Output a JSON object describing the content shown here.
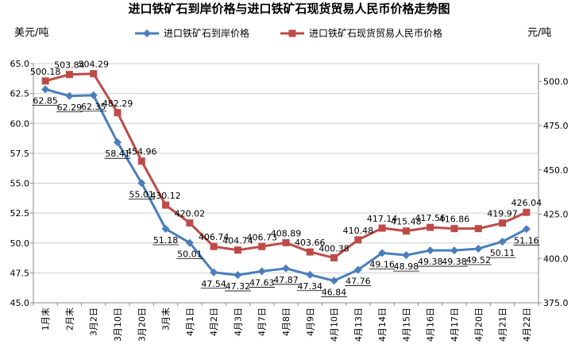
{
  "chart_data": {
    "type": "line",
    "title": "进口铁矿石到岸价格与进口铁矿石现货贸易人民币价格走势图",
    "ylabel_left": "美元/吨",
    "ylabel_right": "元/吨",
    "categories": [
      "1月末",
      "2月末",
      "3月2日",
      "3月10日",
      "3月20日",
      "3月末",
      "4月1日",
      "4月2日",
      "4月3日",
      "4月7日",
      "4月8日",
      "4月9日",
      "4月10日",
      "4月13日",
      "4月14日",
      "4月15日",
      "4月16日",
      "4月17日",
      "4月20日",
      "4月21日",
      "4月22日"
    ],
    "ylim_left": [
      45.0,
      65.0
    ],
    "yticks_left": [
      "45.0",
      "47.5",
      "50.0",
      "52.5",
      "55.0",
      "57.5",
      "60.0",
      "62.5",
      "65.0"
    ],
    "ylim_right": [
      375.0,
      510.0
    ],
    "yticks_right": [
      "375.0",
      "400.0",
      "425.0",
      "450.0",
      "475.0",
      "500.0"
    ],
    "grid": true,
    "legend_position": "top",
    "series": [
      {
        "name": "进口铁矿石到岸价格",
        "axis": "left",
        "color": "#4a7ebb",
        "marker": "diamond",
        "values": [
          62.85,
          62.29,
          62.35,
          58.41,
          55.01,
          51.18,
          50.01,
          47.54,
          47.32,
          47.63,
          47.87,
          47.34,
          46.84,
          47.76,
          49.16,
          48.98,
          49.38,
          49.38,
          49.52,
          50.11,
          51.16
        ],
        "labels": [
          "62.85",
          "62.29",
          "62.35",
          "58.41",
          "55.01",
          "51.18",
          "50.01",
          "47.54",
          "47.32",
          "47.63",
          "47.87",
          "47.34",
          "46.84",
          "47.76",
          "49.16",
          "48.98",
          "49.38",
          "49.38",
          "49.52",
          "50.11",
          "51.16"
        ]
      },
      {
        "name": "进口铁矿石现货贸易人民币价格",
        "axis": "right",
        "color": "#be4b48",
        "marker": "square",
        "values": [
          500.18,
          503.84,
          504.29,
          482.29,
          454.96,
          430.12,
          420.02,
          406.74,
          404.74,
          406.73,
          408.89,
          403.66,
          400.38,
          410.48,
          417.14,
          415.48,
          417.56,
          416.86,
          416.86,
          419.97,
          426.04
        ],
        "labels": [
          "500.18",
          "503.84",
          "504.29",
          "482.29",
          "454.96",
          "430.12",
          "420.02",
          "406.74",
          "404.74",
          "406.73",
          "408.89",
          "403.66",
          "400.38",
          "410.48",
          "417.14",
          "415.48",
          "417.56",
          "416.86",
          "",
          "419.97",
          "426.04"
        ]
      }
    ]
  }
}
